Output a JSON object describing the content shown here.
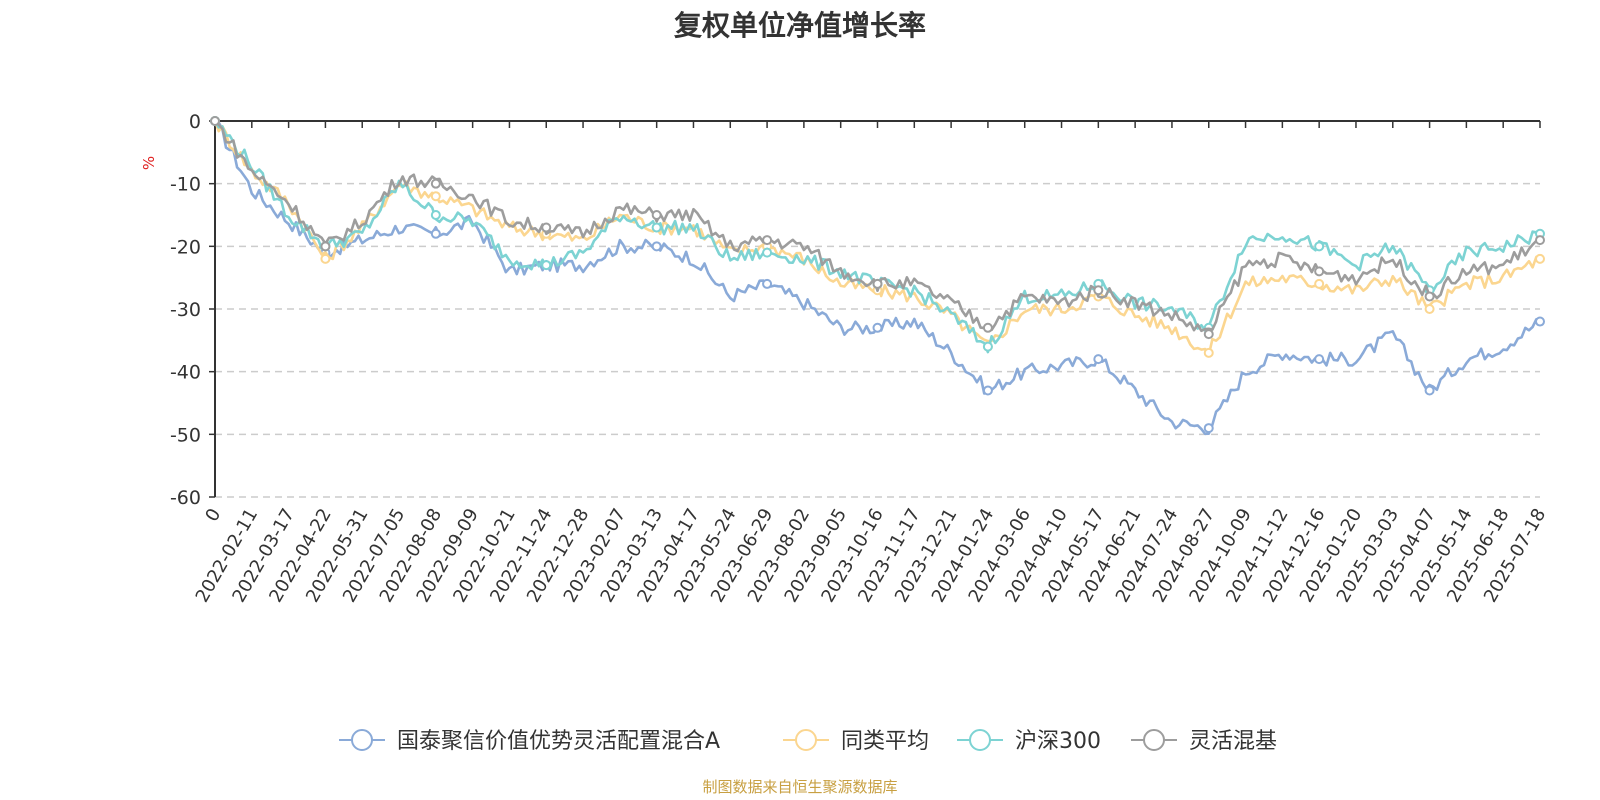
{
  "chart_data": {
    "type": "line",
    "title": "复权单位净值增长率",
    "ylabel": "%",
    "ylim": [
      -60,
      0
    ],
    "yticks": [
      0,
      -10,
      -20,
      -30,
      -40,
      -50,
      -60
    ],
    "grid": true,
    "legend_position": "bottom",
    "x": [
      "0",
      "2022-02-11",
      "2022-03-17",
      "2022-04-22",
      "2022-05-31",
      "2022-07-05",
      "2022-08-08",
      "2022-09-09",
      "2022-10-21",
      "2022-11-24",
      "2022-12-28",
      "2023-02-07",
      "2023-03-13",
      "2023-04-17",
      "2023-05-24",
      "2023-06-29",
      "2023-08-02",
      "2023-09-05",
      "2023-10-16",
      "2023-11-17",
      "2023-12-21",
      "2024-01-24",
      "2024-03-06",
      "2024-04-10",
      "2024-05-17",
      "2024-06-21",
      "2024-07-24",
      "2024-08-27",
      "2024-10-09",
      "2024-11-12",
      "2024-12-16",
      "2025-01-20",
      "2025-03-03",
      "2025-04-07",
      "2025-05-14",
      "2025-06-18",
      "2025-07-18"
    ],
    "series": [
      {
        "name": "国泰聚信价值优势灵活配置混合A",
        "color": "#8aaad8",
        "values": [
          0,
          -11,
          -16,
          -21,
          -19,
          -17,
          -18,
          -16,
          -24,
          -23,
          -23,
          -20,
          -20,
          -22,
          -28,
          -26,
          -29,
          -33,
          -33,
          -32,
          -37,
          -43,
          -40,
          -39,
          -38,
          -43,
          -48,
          -49,
          -40,
          -37,
          -38,
          -38,
          -34,
          -43,
          -38,
          -36,
          -32
        ]
      },
      {
        "name": "同类平均",
        "color": "#fbd690",
        "values": [
          0,
          -8,
          -13,
          -22,
          -17,
          -10,
          -12,
          -14,
          -17,
          -18,
          -19,
          -15,
          -17,
          -17,
          -21,
          -20,
          -22,
          -26,
          -27,
          -28,
          -31,
          -36,
          -30,
          -30,
          -28,
          -31,
          -33,
          -37,
          -26,
          -25,
          -26,
          -27,
          -25,
          -30,
          -26,
          -25,
          -22
        ]
      },
      {
        "name": "沪深300",
        "color": "#7dd3d3",
        "values": [
          0,
          -7,
          -15,
          -20,
          -18,
          -10,
          -15,
          -16,
          -22,
          -23,
          -21,
          -15,
          -17,
          -17,
          -22,
          -21,
          -22,
          -24,
          -26,
          -27,
          -31,
          -36,
          -28,
          -28,
          -26,
          -29,
          -30,
          -33,
          -19,
          -18,
          -20,
          -23,
          -20,
          -27,
          -21,
          -20,
          -18
        ]
      },
      {
        "name": "灵活混基",
        "color": "#9d9d9d",
        "values": [
          0,
          -8,
          -13,
          -20,
          -16,
          -9,
          -10,
          -12,
          -16,
          -17,
          -18,
          -14,
          -15,
          -15,
          -20,
          -19,
          -20,
          -24,
          -26,
          -26,
          -29,
          -33,
          -28,
          -29,
          -27,
          -29,
          -31,
          -34,
          -23,
          -22,
          -24,
          -25,
          -22,
          -28,
          -24,
          -23,
          -19
        ]
      }
    ],
    "source": "制图数据来自恒生聚源数据库",
    "source_color": "#c8a042"
  }
}
